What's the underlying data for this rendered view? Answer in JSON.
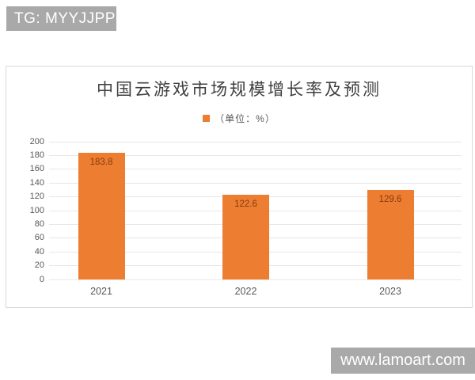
{
  "banner": {
    "text": "TG: MYYJJPP"
  },
  "watermark": {
    "text": "www.lamoart.com"
  },
  "chart_data": {
    "type": "bar",
    "title": "中国云游戏市场规模增长率及预测",
    "legend": {
      "label": "（单位：%）",
      "position": "top",
      "marker_color": "#ED7D31"
    },
    "categories": [
      "2021",
      "2022",
      "2023"
    ],
    "values": [
      183.8,
      122.6,
      129.6
    ],
    "value_labels": [
      "183.8",
      "122.6",
      "129.6"
    ],
    "xlabel": "",
    "ylabel": "",
    "ylim": [
      0,
      200
    ],
    "ytick_step": 20,
    "grid": true,
    "bar_color": "#ED7D31",
    "value_label_color": "#843C0C",
    "axis_label_color": "#595959",
    "title_color": "#404040"
  },
  "colors": {
    "banner_bg": "#A9A9A9",
    "banner_text": "#FFFFFF",
    "watermark_bg": "#A9A9A9",
    "watermark_text": "#FFFFFF",
    "panel_border": "#D9D9D9",
    "gridline": "#E7E7E7",
    "background": "#FFFFFF"
  }
}
